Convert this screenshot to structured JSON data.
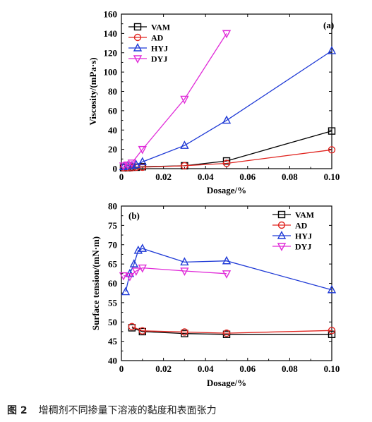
{
  "caption": {
    "figure_number": "图 2",
    "text": "增稠剂不同掺量下溶液的黏度和表面张力"
  },
  "chart_data": [
    {
      "type": "line",
      "panel_label": "(a)",
      "xlabel": "Dosage/%",
      "ylabel": "Viscosity/(mPa·s)",
      "xlim": [
        0,
        0.1
      ],
      "ylim": [
        0,
        160
      ],
      "xticks": [
        0,
        0.02,
        0.04,
        0.06,
        0.08,
        0.1
      ],
      "xtick_labels": [
        "0",
        "0.02",
        "0.04",
        "0.06",
        "0.08",
        "0.10"
      ],
      "yticks": [
        0,
        20,
        40,
        60,
        80,
        100,
        120,
        140,
        160
      ],
      "ytick_labels": [
        "0",
        "20",
        "40",
        "60",
        "80",
        "100",
        "120",
        "140",
        "160"
      ],
      "grid": false,
      "legend_position": "top-left",
      "series": [
        {
          "name": "VAM",
          "color": "#000000",
          "marker": "square",
          "x": [
            0.001,
            0.003,
            0.005,
            0.007,
            0.01,
            0.03,
            0.05,
            0.1
          ],
          "y": [
            1,
            1,
            1.5,
            1.5,
            2,
            3,
            8,
            39
          ]
        },
        {
          "name": "AD",
          "color": "#e0241f",
          "marker": "circle",
          "x": [
            0.001,
            0.003,
            0.005,
            0.007,
            0.01,
            0.03,
            0.05,
            0.1
          ],
          "y": [
            1,
            1,
            1,
            1.5,
            1.5,
            3,
            5.5,
            19.5
          ]
        },
        {
          "name": "HYJ",
          "color": "#1f3ad6",
          "marker": "triangle-up",
          "x": [
            0.001,
            0.003,
            0.005,
            0.007,
            0.01,
            0.03,
            0.05,
            0.1
          ],
          "y": [
            2,
            3,
            3,
            4,
            7,
            24,
            50,
            122
          ]
        },
        {
          "name": "DYJ",
          "color": "#e02ad8",
          "marker": "triangle-down",
          "x": [
            0.001,
            0.003,
            0.005,
            0.01,
            0.03,
            0.05
          ],
          "y": [
            3,
            4,
            6,
            20,
            72,
            140
          ]
        }
      ]
    },
    {
      "type": "line",
      "panel_label": "(b)",
      "xlabel": "Dosage/%",
      "ylabel": "Surface tension/(mN·m)",
      "xlim": [
        0,
        0.1
      ],
      "ylim": [
        40,
        80
      ],
      "xticks": [
        0,
        0.02,
        0.04,
        0.06,
        0.08,
        0.1
      ],
      "xtick_labels": [
        "0",
        "0.02",
        "0.04",
        "0.06",
        "0.08",
        "0.10"
      ],
      "yticks": [
        40,
        45,
        50,
        55,
        60,
        65,
        70,
        75,
        80
      ],
      "ytick_labels": [
        "40",
        "45",
        "50",
        "55",
        "60",
        "65",
        "70",
        "75",
        "80"
      ],
      "grid": false,
      "legend_position": "top-right",
      "series": [
        {
          "name": "VAM",
          "color": "#000000",
          "marker": "square",
          "x": [
            0.005,
            0.01,
            0.03,
            0.05,
            0.1
          ],
          "y": [
            48.5,
            47.5,
            47,
            46.8,
            46.8
          ]
        },
        {
          "name": "AD",
          "color": "#e0241f",
          "marker": "circle",
          "x": [
            0.005,
            0.01,
            0.03,
            0.05,
            0.1
          ],
          "y": [
            48.8,
            47.7,
            47.4,
            47.1,
            47.8
          ]
        },
        {
          "name": "HYJ",
          "color": "#1f3ad6",
          "marker": "triangle-up",
          "x": [
            0.002,
            0.004,
            0.006,
            0.008,
            0.01,
            0.03,
            0.05,
            0.1
          ],
          "y": [
            57.8,
            62.5,
            65,
            68.5,
            69,
            65.5,
            65.8,
            58.3
          ]
        },
        {
          "name": "DYJ",
          "color": "#e02ad8",
          "marker": "triangle-down",
          "x": [
            0.001,
            0.004,
            0.007,
            0.01,
            0.03,
            0.05
          ],
          "y": [
            62,
            61.8,
            63.2,
            64,
            63.2,
            62.5
          ]
        }
      ]
    }
  ]
}
